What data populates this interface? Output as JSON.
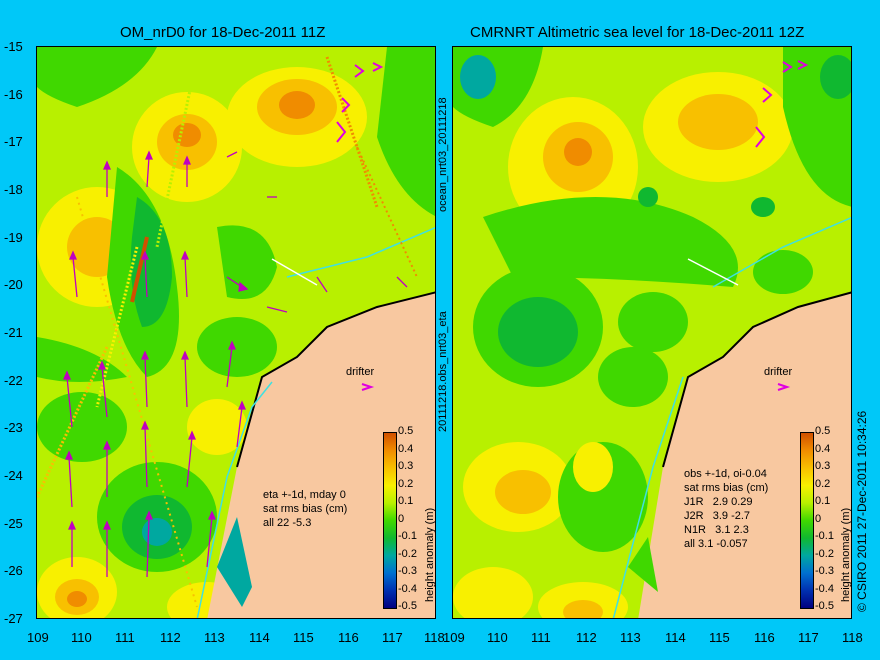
{
  "left_panel": {
    "title": "OM_nrD0 for 18-Dec-2011 11Z",
    "annotation_lines": [
      "eta +-1d, mday 0",
      "sat rms bias (cm)",
      "all 22 -5.3"
    ],
    "drifter_label": "drifter"
  },
  "right_panel": {
    "title": "CMRNRT Altimetric sea level  for 18-Dec-2011 12Z",
    "annotation_lines": [
      "obs +-1d, oi-0.04",
      "sat rms bias (cm)",
      "J1R   2.9 0.29",
      "J2R   3.9 -2.7",
      "N1R   3.1 2.3",
      "all 3.1 -0.057"
    ],
    "drifter_label": "drifter"
  },
  "center_vertical_labels": [
    "ocean_nrt03_20111218",
    "20111218.obs_nrt03_eta"
  ],
  "colorbar": {
    "label": "height anomaly (m)",
    "ticks": [
      "0.5",
      "0.4",
      "0.3",
      "0.2",
      "0.1",
      "0",
      "-0.1",
      "-0.2",
      "-0.3",
      "-0.4",
      "-0.5"
    ],
    "colors": [
      "#d05000",
      "#f08c00",
      "#f8c000",
      "#f8f000",
      "#b8f000",
      "#40d800",
      "#10b830",
      "#00a8a0",
      "#0070d0",
      "#0030b0",
      "#000080"
    ]
  },
  "axes": {
    "lat_ticks": [
      "-15",
      "-16",
      "-17",
      "-18",
      "-19",
      "-20",
      "-21",
      "-22",
      "-23",
      "-24",
      "-25",
      "-26",
      "-27"
    ],
    "lon_ticks": [
      "109",
      "110",
      "111",
      "112",
      "113",
      "114",
      "115",
      "116",
      "117",
      "118"
    ]
  },
  "copyright": "© CSIRO 2011   27-Dec-2011 10:34:26",
  "colors": {
    "background": "#00c8f8",
    "land": "#f8c8a0"
  }
}
